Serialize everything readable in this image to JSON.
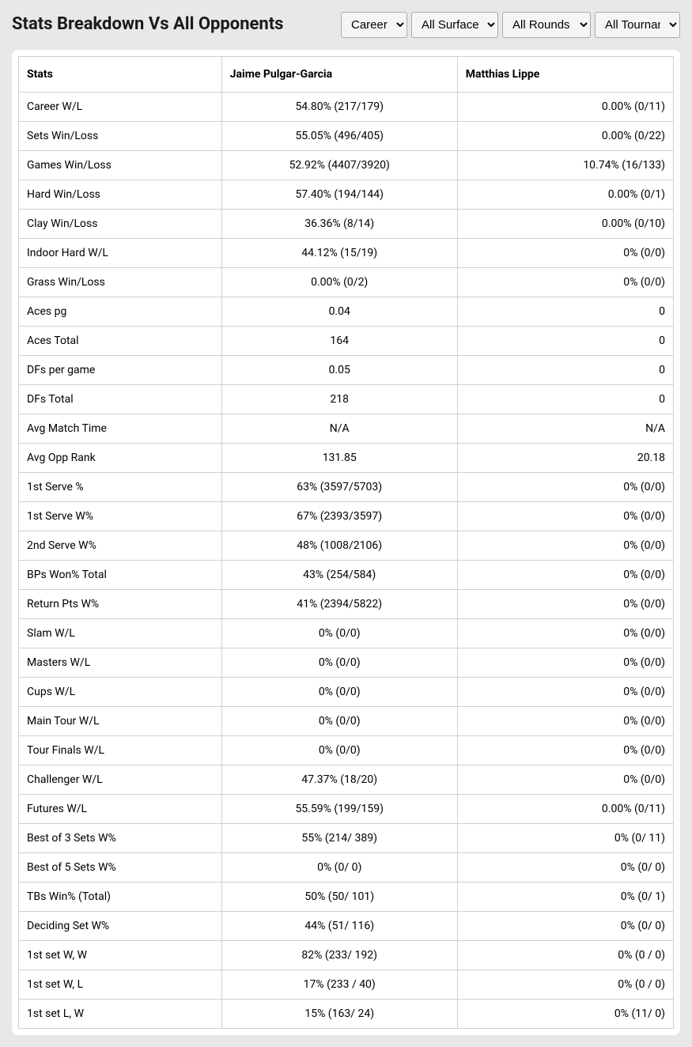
{
  "title": "Stats Breakdown Vs All Opponents",
  "filters": {
    "period": {
      "selected": "Career",
      "options": [
        "Career"
      ]
    },
    "surface": {
      "selected": "All Surfaces",
      "options": [
        "All Surfaces"
      ]
    },
    "rounds": {
      "selected": "All Rounds",
      "options": [
        "All Rounds"
      ]
    },
    "tournaments": {
      "selected": "All Tournaments",
      "options": [
        "All Tournaments"
      ]
    }
  },
  "table": {
    "headers": {
      "stats": "Stats",
      "player1": "Jaime Pulgar-Garcia",
      "player2": "Matthias Lippe"
    },
    "rows": [
      {
        "stat": "Career W/L",
        "p1": "54.80% (217/179)",
        "p2": "0.00% (0/11)"
      },
      {
        "stat": "Sets Win/Loss",
        "p1": "55.05% (496/405)",
        "p2": "0.00% (0/22)"
      },
      {
        "stat": "Games Win/Loss",
        "p1": "52.92% (4407/3920)",
        "p2": "10.74% (16/133)"
      },
      {
        "stat": "Hard Win/Loss",
        "p1": "57.40% (194/144)",
        "p2": "0.00% (0/1)"
      },
      {
        "stat": "Clay Win/Loss",
        "p1": "36.36% (8/14)",
        "p2": "0.00% (0/10)"
      },
      {
        "stat": "Indoor Hard W/L",
        "p1": "44.12% (15/19)",
        "p2": "0% (0/0)"
      },
      {
        "stat": "Grass Win/Loss",
        "p1": "0.00% (0/2)",
        "p2": "0% (0/0)"
      },
      {
        "stat": "Aces pg",
        "p1": "0.04",
        "p2": "0"
      },
      {
        "stat": "Aces Total",
        "p1": "164",
        "p2": "0"
      },
      {
        "stat": "DFs per game",
        "p1": "0.05",
        "p2": "0"
      },
      {
        "stat": "DFs Total",
        "p1": "218",
        "p2": "0"
      },
      {
        "stat": "Avg Match Time",
        "p1": "N/A",
        "p2": "N/A"
      },
      {
        "stat": "Avg Opp Rank",
        "p1": "131.85",
        "p2": "20.18"
      },
      {
        "stat": "1st Serve %",
        "p1": "63% (3597/5703)",
        "p2": "0% (0/0)"
      },
      {
        "stat": "1st Serve W%",
        "p1": "67% (2393/3597)",
        "p2": "0% (0/0)"
      },
      {
        "stat": "2nd Serve W%",
        "p1": "48% (1008/2106)",
        "p2": "0% (0/0)"
      },
      {
        "stat": "BPs Won% Total",
        "p1": "43% (254/584)",
        "p2": "0% (0/0)"
      },
      {
        "stat": "Return Pts W%",
        "p1": "41% (2394/5822)",
        "p2": "0% (0/0)"
      },
      {
        "stat": "Slam W/L",
        "p1": "0% (0/0)",
        "p2": "0% (0/0)"
      },
      {
        "stat": "Masters W/L",
        "p1": "0% (0/0)",
        "p2": "0% (0/0)"
      },
      {
        "stat": "Cups W/L",
        "p1": "0% (0/0)",
        "p2": "0% (0/0)"
      },
      {
        "stat": "Main Tour W/L",
        "p1": "0% (0/0)",
        "p2": "0% (0/0)"
      },
      {
        "stat": "Tour Finals W/L",
        "p1": "0% (0/0)",
        "p2": "0% (0/0)"
      },
      {
        "stat": "Challenger W/L",
        "p1": "47.37% (18/20)",
        "p2": "0% (0/0)"
      },
      {
        "stat": "Futures W/L",
        "p1": "55.59% (199/159)",
        "p2": "0.00% (0/11)"
      },
      {
        "stat": "Best of 3 Sets W%",
        "p1": "55% (214/ 389)",
        "p2": "0% (0/ 11)"
      },
      {
        "stat": "Best of 5 Sets W%",
        "p1": "0% (0/ 0)",
        "p2": "0% (0/ 0)"
      },
      {
        "stat": "TBs Win% (Total)",
        "p1": "50% (50/ 101)",
        "p2": "0% (0/ 1)"
      },
      {
        "stat": "Deciding Set W%",
        "p1": "44% (51/ 116)",
        "p2": "0% (0/ 0)"
      },
      {
        "stat": "1st set W, W",
        "p1": "82% (233/ 192)",
        "p2": "0% (0 / 0)"
      },
      {
        "stat": "1st set W, L",
        "p1": "17% (233 / 40)",
        "p2": "0% (0 / 0)"
      },
      {
        "stat": "1st set L, W",
        "p1": "15% (163/ 24)",
        "p2": "0% (11/ 0)"
      }
    ]
  }
}
